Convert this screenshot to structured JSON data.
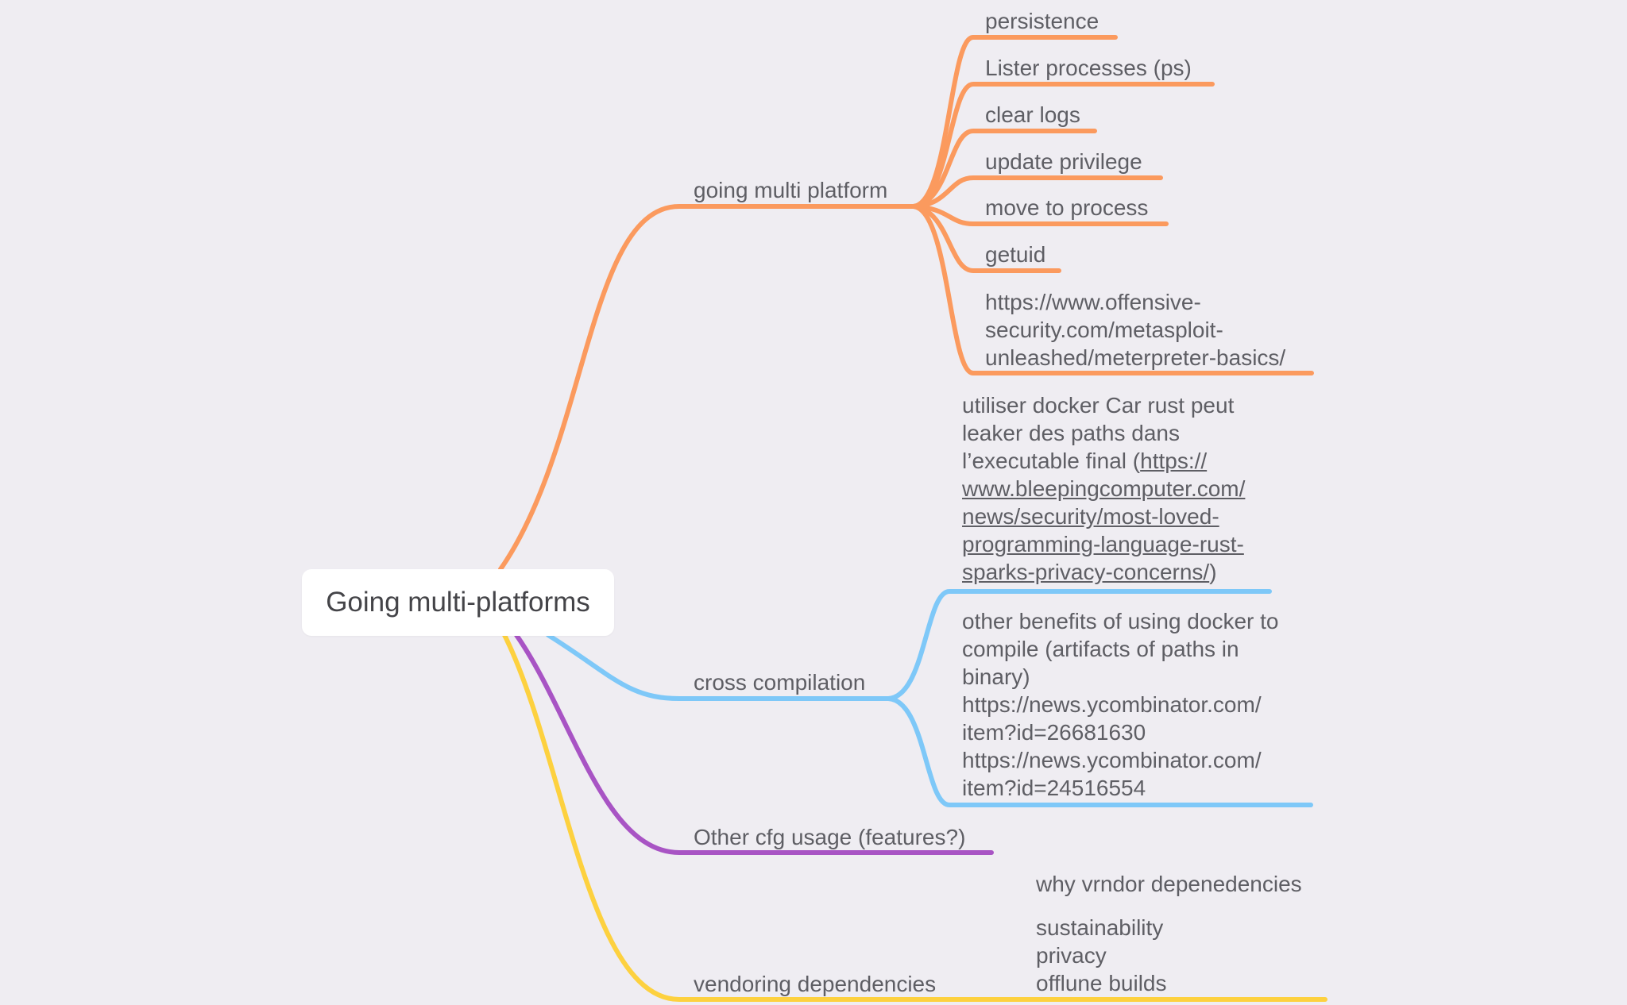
{
  "colors": {
    "background": "#efedf2",
    "text": "#5e5e64",
    "orange": "#fb9a5e",
    "blue": "#7ec8f8",
    "purple": "#a854c4",
    "yellow": "#fdd13f"
  },
  "root": {
    "label": "Going multi-platforms"
  },
  "branches": {
    "going_multi_platform": {
      "label": "going multi platform",
      "children": [
        "persistence",
        "Lister processes (ps)",
        "clear logs",
        "update privilege",
        "move to process",
        "getuid",
        "https://www.offensive-\nsecurity.com/metasploit-\nunleashed/meterpreter-basics/"
      ]
    },
    "cross_compilation": {
      "label": "cross compilation",
      "child1_text": "utiliser docker Car rust peut\nleaker des paths dans\nl’executable final (",
      "child1_link": "https://\nwww.bleepingcomputer.com/\nnews/security/most-loved-\nprogramming-language-rust-\nsparks-privacy-concerns/",
      "child1_tail": ")",
      "child2": "other benefits of using docker to\ncompile (artifacts of paths in\nbinary)\nhttps://news.ycombinator.com/\nitem?id=26681630\nhttps://news.ycombinator.com/\nitem?id=24516554"
    },
    "other_cfg": {
      "label": "Other cfg usage (features?)"
    },
    "vendoring": {
      "label": "vendoring dependencies",
      "note": "why vrndor depenedencies",
      "child": "sustainability\nprivacy\nofflune builds"
    }
  }
}
